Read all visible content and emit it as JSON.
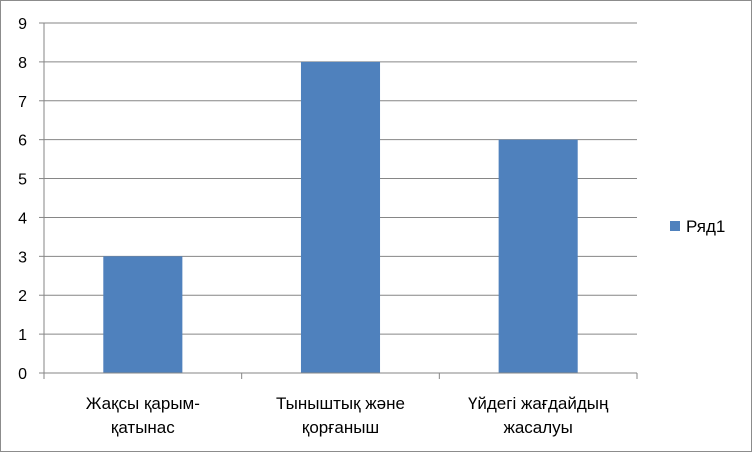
{
  "chart_data": {
    "type": "bar",
    "categories": [
      [
        "Жақсы қарым-",
        "қатынас"
      ],
      [
        "Тыныштық және",
        "қорғаныш"
      ],
      [
        "Үйдегі жағдайдың",
        "жасалуы"
      ]
    ],
    "series": [
      {
        "name": "Ряд1",
        "values": [
          3,
          8,
          6
        ],
        "color": "#4F81BD"
      }
    ],
    "yticks": [
      "0",
      "1",
      "2",
      "3",
      "4",
      "5",
      "6",
      "7",
      "8",
      "9"
    ],
    "ylim": [
      0,
      9
    ],
    "grid": true,
    "legend": "right"
  }
}
